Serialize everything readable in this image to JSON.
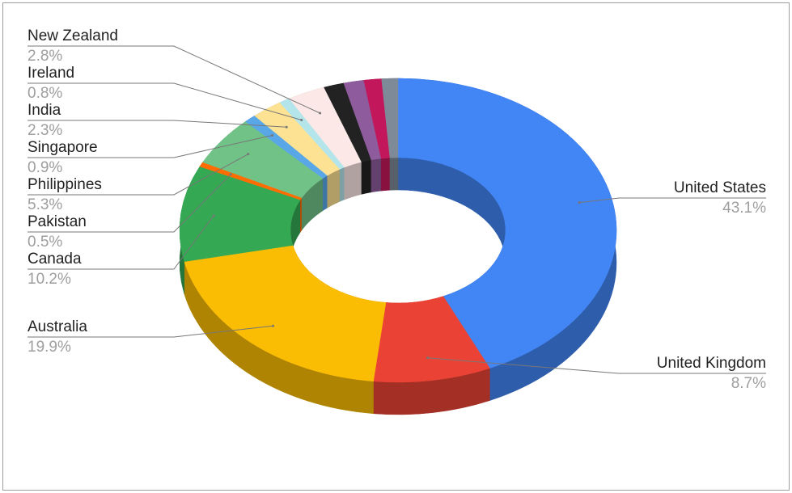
{
  "chart_data": {
    "type": "pie",
    "donut": true,
    "three_d": true,
    "categories": [
      "United States",
      "United Kingdom",
      "Australia",
      "Canada",
      "Pakistan",
      "Philippines",
      "Singapore",
      "India",
      "Ireland",
      "New Zealand",
      null,
      null,
      null,
      null
    ],
    "values": [
      43.1,
      8.7,
      19.9,
      10.2,
      0.5,
      5.3,
      0.9,
      2.3,
      0.8,
      2.8,
      1.5,
      1.5,
      1.3,
      1.2
    ],
    "value_labels": [
      "43.1%",
      "8.7%",
      "19.9%",
      "10.2%",
      "0.5%",
      "5.3%",
      "0.9%",
      "2.3%",
      "0.8%",
      "2.8%",
      null,
      null,
      null,
      null
    ],
    "colors": [
      "#4285f4",
      "#ea4335",
      "#fbbc04",
      "#34a853",
      "#ff6d01",
      "#71c287",
      "#5aa7e8",
      "#fde293",
      "#b3e5ea",
      "#fce8e6",
      "#222222",
      "#8e5c9c",
      "#c2185b",
      "#7e8a97"
    ]
  }
}
